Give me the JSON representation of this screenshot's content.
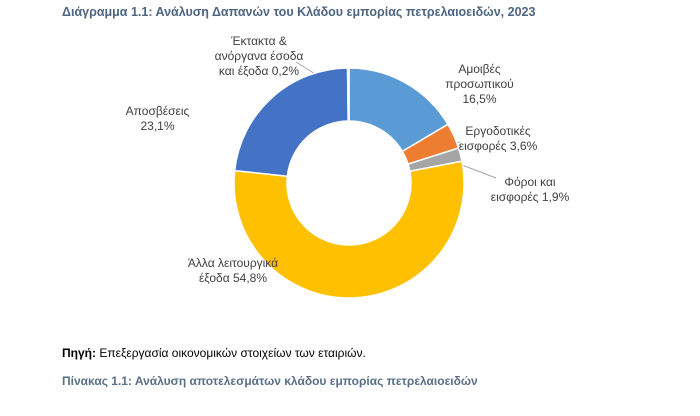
{
  "chart_data": {
    "type": "donut",
    "title": "Διάγραμμα 1.1: Ανάλυση Δαπανών του Κλάδου εμπορίας πετρελαιοειδών, 2023",
    "categories": [
      "Αμοιβές προσωπικού",
      "Εργοδοτικές εισφορές",
      "Φόροι και εισφορές",
      "Άλλα λειτουργικά έξοδα",
      "Αποσβέσεις",
      "Έκτακτα & ανόργανα έσοδα και έξοδα"
    ],
    "values": [
      16.5,
      3.6,
      1.9,
      54.8,
      23.1,
      0.2
    ],
    "value_labels": [
      "16,5%",
      "3,6%",
      "1,9%",
      "54,8%",
      "23,1%",
      "0,2%"
    ],
    "colors": [
      "#5b9bd5",
      "#ed7d31",
      "#a5a5a5",
      "#ffc000",
      "#4472c4",
      "#70ad47"
    ]
  },
  "source": {
    "label": "Πηγή:",
    "text": "Επεξεργασία οικονομικών στοιχείων των εταιριών."
  },
  "table_caption": "Πίνακας 1.1: Ανάλυση αποτελεσμάτων κλάδου εμπορίας πετρελαιοειδών"
}
